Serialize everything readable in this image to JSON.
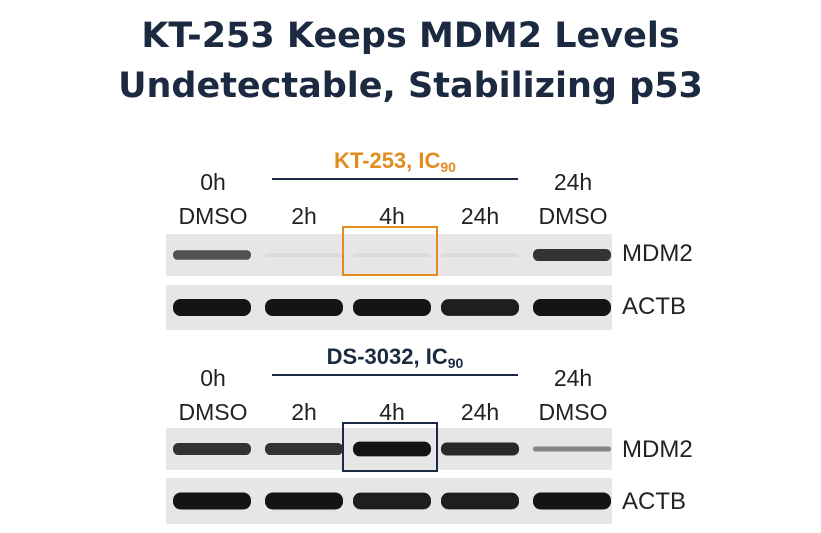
{
  "title": {
    "line1": "KT-253 Keeps MDM2 Levels",
    "line2": "Undetectable, Stabilizing p53"
  },
  "colors": {
    "kt_accent": "#e38b1e",
    "ds_accent": "#1b2a40"
  },
  "panels": [
    {
      "treatment": "KT-253, IC",
      "treatment_sub": "90",
      "lanes": [
        {
          "top": "0h",
          "bottom": "DMSO"
        },
        {
          "top": "",
          "bottom": "2h"
        },
        {
          "top": "",
          "bottom": "4h"
        },
        {
          "top": "",
          "bottom": "24h"
        },
        {
          "top": "24h",
          "bottom": "DMSO"
        }
      ],
      "rows": [
        {
          "label": "MDM2",
          "band_intensity": [
            0.7,
            0.03,
            0.03,
            0.03,
            0.85
          ]
        },
        {
          "label": "ACTB",
          "band_intensity": [
            1.0,
            1.0,
            1.0,
            0.95,
            1.0
          ]
        }
      ],
      "highlight_lane": 2
    },
    {
      "treatment": "DS-3032, IC",
      "treatment_sub": "90",
      "lanes": [
        {
          "top": "0h",
          "bottom": "DMSO"
        },
        {
          "top": "",
          "bottom": "2h"
        },
        {
          "top": "",
          "bottom": "4h"
        },
        {
          "top": "",
          "bottom": "24h"
        },
        {
          "top": "24h",
          "bottom": "DMSO"
        }
      ],
      "rows": [
        {
          "label": "MDM2",
          "band_intensity": [
            0.85,
            0.85,
            1.0,
            0.9,
            0.45
          ]
        },
        {
          "label": "ACTB",
          "band_intensity": [
            1.0,
            1.0,
            0.95,
            0.95,
            1.0
          ]
        }
      ],
      "highlight_lane": 2
    }
  ]
}
